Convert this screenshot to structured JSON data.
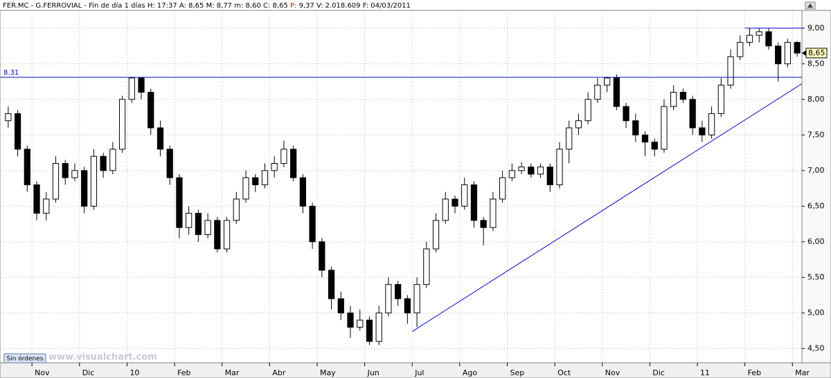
{
  "header": {
    "items": [
      "FER.MC",
      "G.FERROVIAL",
      "Fin de día 1 días"
    ],
    "fields": [
      {
        "label": "H:",
        "value": "17:37"
      },
      {
        "label": "A:",
        "value": "8,65"
      },
      {
        "label": "M:",
        "value": "8,77"
      },
      {
        "label": "m:",
        "value": "8,60"
      },
      {
        "label": "C:",
        "value": "8,65"
      },
      {
        "label": "P:",
        "value": "9,37",
        "color": "#ff0000"
      },
      {
        "label": "V:",
        "value": "2.018.609"
      },
      {
        "label": "F:",
        "value": "04/03/2011"
      }
    ]
  },
  "footer": {
    "button": "Sin órdenes",
    "watermark": "www.visualchart.com"
  },
  "chart_data": {
    "type": "candlestick",
    "ylim": [
      4.3,
      9.25
    ],
    "yticks": [
      {
        "value": 4.5,
        "label": "4,50"
      },
      {
        "value": 5.0,
        "label": "5,00"
      },
      {
        "value": 5.5,
        "label": "5,50"
      },
      {
        "value": 6.0,
        "label": "6,00"
      },
      {
        "value": 6.5,
        "label": "6,50"
      },
      {
        "value": 7.0,
        "label": "7,00"
      },
      {
        "value": 7.5,
        "label": "7,50"
      },
      {
        "value": 8.0,
        "label": "8,00"
      },
      {
        "value": 8.5,
        "label": "8,50"
      },
      {
        "value": 9.0,
        "label": "9,00"
      }
    ],
    "grid": true,
    "up_color": "#ffffff",
    "down_color": "#000000",
    "line_color": "#0000cc",
    "last_price": {
      "value": 8.65,
      "label": "8,65"
    },
    "support": {
      "value": 8.31,
      "label": "8.31"
    },
    "resistance": 9.0,
    "trendline": [
      4.74,
      8.22
    ],
    "groups": [
      {
        "label": null,
        "candles": [
          [
            7.7,
            7.9,
            7.6,
            7.8
          ],
          [
            7.8,
            7.85,
            7.2,
            7.3
          ],
          [
            7.3,
            7.35,
            6.7,
            6.8
          ]
        ]
      },
      {
        "label": "Nov",
        "candles": [
          [
            6.8,
            6.85,
            6.3,
            6.4
          ],
          [
            6.4,
            6.7,
            6.3,
            6.6
          ],
          [
            6.6,
            7.2,
            6.55,
            7.1
          ],
          [
            7.1,
            7.15,
            6.8,
            6.9
          ],
          [
            6.9,
            7.1,
            6.85,
            7.0
          ]
        ]
      },
      {
        "label": "Dic",
        "candles": [
          [
            7.0,
            7.05,
            6.4,
            6.5
          ],
          [
            6.5,
            7.3,
            6.45,
            7.2
          ],
          [
            7.2,
            7.25,
            6.9,
            7.0
          ],
          [
            7.0,
            7.4,
            6.95,
            7.3
          ],
          [
            7.3,
            8.05,
            7.25,
            8.0
          ]
        ]
      },
      {
        "label": "10",
        "candles": [
          [
            8.0,
            8.31,
            7.95,
            8.3
          ],
          [
            8.3,
            8.31,
            8.0,
            8.1
          ],
          [
            8.1,
            8.15,
            7.5,
            7.6
          ],
          [
            7.6,
            7.7,
            7.2,
            7.3
          ],
          [
            7.3,
            7.35,
            6.8,
            6.9
          ]
        ]
      },
      {
        "label": "Feb",
        "candles": [
          [
            6.9,
            6.95,
            6.05,
            6.2
          ],
          [
            6.2,
            6.5,
            6.1,
            6.4
          ],
          [
            6.4,
            6.45,
            6.0,
            6.1
          ],
          [
            6.1,
            6.4,
            6.05,
            6.3
          ],
          [
            6.3,
            6.35,
            5.85,
            5.9
          ]
        ]
      },
      {
        "label": "Mar",
        "candles": [
          [
            5.9,
            6.35,
            5.85,
            6.3
          ],
          [
            6.3,
            6.7,
            6.25,
            6.6
          ],
          [
            6.6,
            7.0,
            6.55,
            6.9
          ],
          [
            6.9,
            6.95,
            6.7,
            6.8
          ],
          [
            6.8,
            7.1,
            6.75,
            7.0
          ]
        ]
      },
      {
        "label": "Abr",
        "candles": [
          [
            7.0,
            7.2,
            6.9,
            7.1
          ],
          [
            7.1,
            7.42,
            7.05,
            7.3
          ],
          [
            7.3,
            7.35,
            6.85,
            6.9
          ],
          [
            6.9,
            6.95,
            6.4,
            6.5
          ],
          [
            6.5,
            6.55,
            5.9,
            6.0
          ]
        ]
      },
      {
        "label": "May",
        "candles": [
          [
            6.0,
            6.05,
            5.5,
            5.6
          ],
          [
            5.6,
            5.65,
            5.05,
            5.2
          ],
          [
            5.2,
            5.3,
            4.9,
            5.0
          ],
          [
            5.0,
            5.1,
            4.65,
            4.8
          ],
          [
            4.8,
            5.05,
            4.75,
            4.9
          ]
        ]
      },
      {
        "label": "Jun",
        "candles": [
          [
            4.9,
            4.95,
            4.55,
            4.6
          ],
          [
            4.6,
            5.1,
            4.55,
            5.0
          ],
          [
            5.0,
            5.5,
            4.95,
            5.4
          ],
          [
            5.4,
            5.45,
            5.1,
            5.2
          ],
          [
            5.2,
            5.25,
            4.85,
            5.0
          ]
        ]
      },
      {
        "label": "Jul",
        "candles": [
          [
            5.0,
            5.5,
            4.8,
            5.4
          ],
          [
            5.4,
            6.0,
            5.35,
            5.9
          ],
          [
            5.9,
            6.4,
            5.85,
            6.3
          ],
          [
            6.3,
            6.7,
            6.25,
            6.6
          ],
          [
            6.6,
            6.65,
            6.4,
            6.5
          ]
        ]
      },
      {
        "label": "Ago",
        "candles": [
          [
            6.5,
            6.9,
            6.45,
            6.8
          ],
          [
            6.8,
            6.85,
            6.2,
            6.3
          ],
          [
            6.3,
            6.35,
            5.95,
            6.2
          ],
          [
            6.2,
            6.7,
            6.15,
            6.6
          ],
          [
            6.6,
            7.0,
            6.55,
            6.9
          ]
        ]
      },
      {
        "label": "Sep",
        "candles": [
          [
            6.9,
            7.1,
            6.85,
            7.0
          ],
          [
            7.0,
            7.12,
            6.95,
            7.05
          ],
          [
            7.05,
            7.1,
            6.9,
            6.95
          ],
          [
            6.95,
            7.1,
            6.9,
            7.05
          ],
          [
            7.05,
            7.1,
            6.7,
            6.8
          ]
        ]
      },
      {
        "label": "Oct",
        "candles": [
          [
            6.8,
            7.4,
            6.75,
            7.3
          ],
          [
            7.3,
            7.7,
            7.1,
            7.6
          ],
          [
            7.6,
            7.8,
            7.5,
            7.7
          ],
          [
            7.7,
            8.1,
            7.65,
            8.0
          ],
          [
            8.0,
            8.3,
            7.95,
            8.2
          ]
        ]
      },
      {
        "label": "Nov",
        "candles": [
          [
            8.2,
            8.32,
            8.1,
            8.3
          ],
          [
            8.3,
            8.35,
            7.85,
            7.9
          ],
          [
            7.9,
            7.95,
            7.6,
            7.7
          ],
          [
            7.7,
            7.8,
            7.4,
            7.5
          ],
          [
            7.5,
            7.55,
            7.2,
            7.4
          ]
        ]
      },
      {
        "label": "Dic",
        "candles": [
          [
            7.4,
            7.45,
            7.2,
            7.3
          ],
          [
            7.3,
            8.0,
            7.25,
            7.9
          ],
          [
            7.9,
            8.2,
            7.85,
            8.1
          ],
          [
            8.1,
            8.15,
            7.95,
            8.0
          ],
          [
            8.0,
            8.05,
            7.5,
            7.6
          ]
        ]
      },
      {
        "label": "11",
        "candles": [
          [
            7.6,
            7.7,
            7.4,
            7.5
          ],
          [
            7.5,
            7.9,
            7.45,
            7.8
          ],
          [
            7.8,
            8.3,
            7.75,
            8.2
          ],
          [
            8.2,
            8.7,
            8.15,
            8.6
          ],
          [
            8.6,
            8.9,
            8.55,
            8.8
          ]
        ]
      },
      {
        "label": "Feb",
        "candles": [
          [
            8.8,
            9.0,
            8.75,
            8.9
          ],
          [
            8.9,
            9.0,
            8.8,
            8.95
          ],
          [
            8.95,
            9.0,
            8.7,
            8.75
          ],
          [
            8.75,
            8.8,
            8.25,
            8.5
          ],
          [
            8.5,
            8.85,
            8.45,
            8.8
          ]
        ]
      },
      {
        "label": "Mar",
        "candles": [
          [
            8.8,
            8.82,
            8.6,
            8.65
          ]
        ]
      }
    ]
  }
}
